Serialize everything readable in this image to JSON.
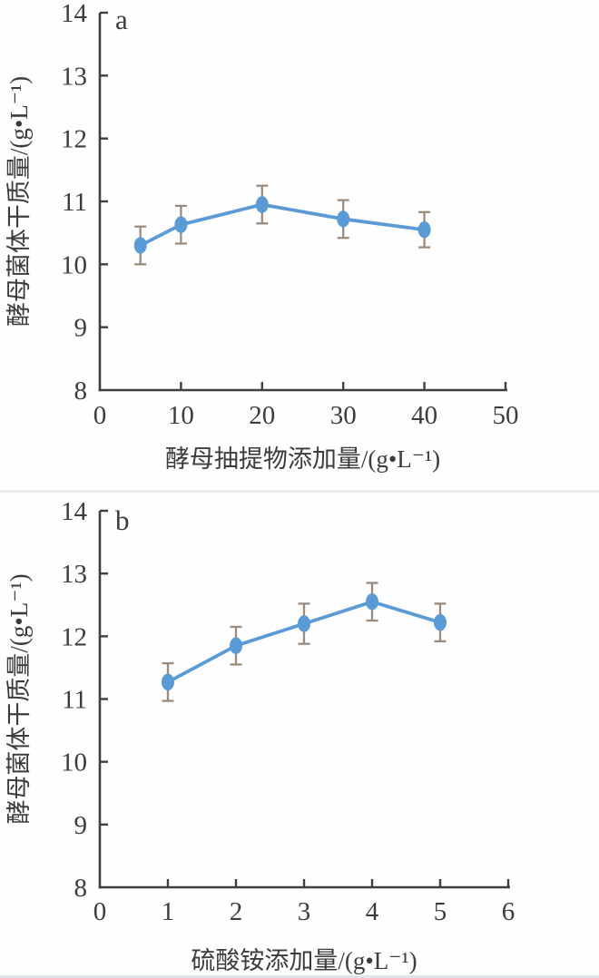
{
  "colors": {
    "series_blue": "#5B9BD5",
    "error_bar": "#9a8b7d",
    "axis": "#3f3f3f",
    "text": "#3c3c3c",
    "background": "#fefefe",
    "separator": "#ececec",
    "bottom_edge": "#dfe4ea"
  },
  "chart_data": [
    {
      "type": "line",
      "panel_label": "a",
      "title": "",
      "xlabel": "酵母抽提物添加量/(g•L⁻¹)",
      "ylabel": "酵母菌体干质量/(g•L⁻¹)",
      "x": [
        5,
        10,
        20,
        30,
        40
      ],
      "y": [
        10.3,
        10.63,
        10.95,
        10.72,
        10.55
      ],
      "y_error": [
        0.3,
        0.3,
        0.3,
        0.3,
        0.28
      ],
      "xlim": [
        0,
        50
      ],
      "ylim": [
        8,
        14
      ],
      "xticks": [
        0,
        10,
        20,
        30,
        40,
        50
      ],
      "yticks": [
        8,
        9,
        10,
        11,
        12,
        13,
        14
      ],
      "grid": false,
      "legend": "none",
      "marker": "ellipse",
      "series_name": "yeast-cell-dry-mass-vs-yeast-extract"
    },
    {
      "type": "line",
      "panel_label": "b",
      "title": "",
      "xlabel": "硫酸铵添加量/(g•L⁻¹)",
      "ylabel": "酵母菌体干质量/(g•L⁻¹)",
      "x": [
        1,
        2,
        3,
        4,
        5
      ],
      "y": [
        11.27,
        11.85,
        12.2,
        12.55,
        12.22
      ],
      "y_error": [
        0.3,
        0.3,
        0.32,
        0.3,
        0.3
      ],
      "xlim": [
        0,
        6
      ],
      "ylim": [
        8,
        14
      ],
      "xticks": [
        0,
        1,
        2,
        3,
        4,
        5,
        6
      ],
      "yticks": [
        8,
        9,
        10,
        11,
        12,
        13,
        14
      ],
      "grid": false,
      "legend": "none",
      "marker": "ellipse",
      "series_name": "yeast-cell-dry-mass-vs-ammonium-sulfate"
    }
  ]
}
